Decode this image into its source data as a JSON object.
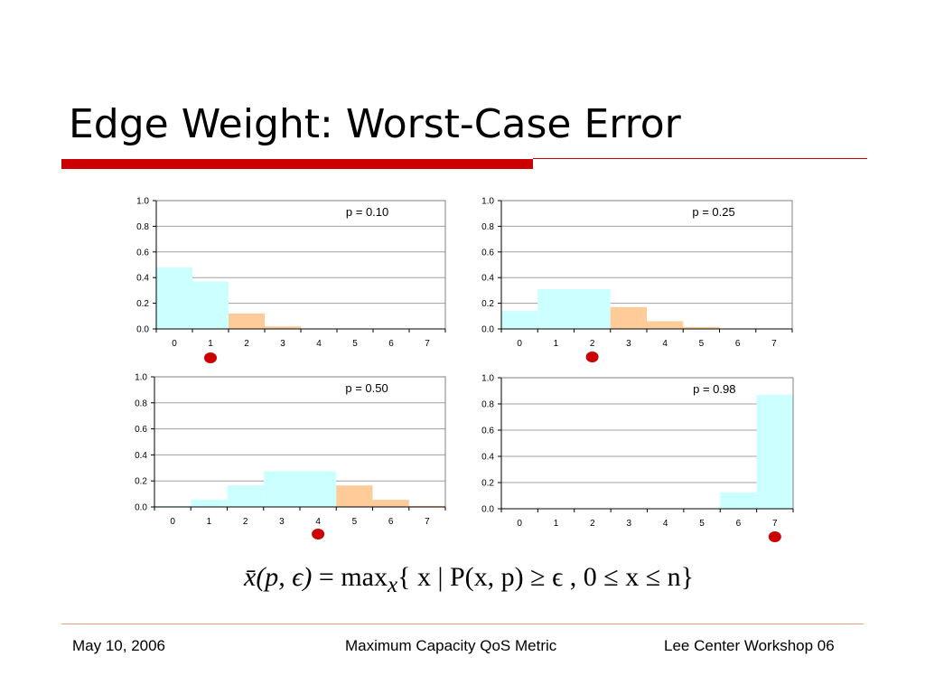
{
  "slide": {
    "title": "Edge Weight: Worst-Case Error",
    "accent_color": "#cc0000"
  },
  "formula": {
    "lhs": "x̄(p, ϵ)",
    "eq": " = ",
    "op": "max",
    "sub": "x",
    "body": "{ x | P(x, p) ≥ ϵ , 0 ≤ x ≤ n}"
  },
  "footer": {
    "left": "May 10, 2006",
    "center": "Maximum Capacity QoS Metric",
    "right": "Lee Center Workshop 06"
  },
  "colors": {
    "cyan": "#ccffff",
    "orange": "#ffcc99",
    "marker": "#cc0000"
  },
  "chart_data": [
    {
      "type": "bar",
      "title": "p = 0.10",
      "categories": [
        "0",
        "1",
        "2",
        "3",
        "4",
        "5",
        "6",
        "7"
      ],
      "values": [
        0.48,
        0.37,
        0.12,
        0.02,
        0.0,
        0.0,
        0.0,
        0.0
      ],
      "bar_colors": [
        "cyan",
        "cyan",
        "orange",
        "orange",
        "orange",
        "orange",
        "orange",
        "orange"
      ],
      "ylim": [
        0,
        1.0
      ],
      "yticks": [
        "0.0",
        "0.2",
        "0.4",
        "0.6",
        "0.8",
        "1.0"
      ],
      "marker_at": 1,
      "grid": true
    },
    {
      "type": "bar",
      "title": "p = 0.25",
      "categories": [
        "0",
        "1",
        "2",
        "3",
        "4",
        "5",
        "6",
        "7"
      ],
      "values": [
        0.14,
        0.31,
        0.31,
        0.17,
        0.06,
        0.015,
        0.0,
        0.0
      ],
      "bar_colors": [
        "cyan",
        "cyan",
        "cyan",
        "orange",
        "orange",
        "orange",
        "orange",
        "orange"
      ],
      "ylim": [
        0,
        1.0
      ],
      "yticks": [
        "0.0",
        "0.2",
        "0.4",
        "0.6",
        "0.8",
        "1.0"
      ],
      "marker_at": 2,
      "grid": true
    },
    {
      "type": "bar",
      "title": "p = 0.50",
      "categories": [
        "0",
        "1",
        "2",
        "3",
        "4",
        "5",
        "6",
        "7"
      ],
      "values": [
        0.008,
        0.055,
        0.165,
        0.275,
        0.275,
        0.165,
        0.055,
        0.008
      ],
      "bar_colors": [
        "cyan",
        "cyan",
        "cyan",
        "cyan",
        "cyan",
        "orange",
        "orange",
        "orange"
      ],
      "ylim": [
        0,
        1.0
      ],
      "yticks": [
        "0.0",
        "0.2",
        "0.4",
        "0.6",
        "0.8",
        "1.0"
      ],
      "marker_at": 4,
      "grid": true
    },
    {
      "type": "bar",
      "title": "p = 0.98",
      "categories": [
        "0",
        "1",
        "2",
        "3",
        "4",
        "5",
        "6",
        "7"
      ],
      "values": [
        0.0,
        0.0,
        0.0,
        0.0,
        0.0,
        0.0,
        0.125,
        0.87
      ],
      "bar_colors": [
        "cyan",
        "cyan",
        "cyan",
        "cyan",
        "cyan",
        "cyan",
        "cyan",
        "cyan"
      ],
      "ylim": [
        0,
        1.0
      ],
      "yticks": [
        "0.0",
        "0.2",
        "0.4",
        "0.6",
        "0.8",
        "1.0"
      ],
      "marker_at": 7,
      "grid": true
    }
  ]
}
